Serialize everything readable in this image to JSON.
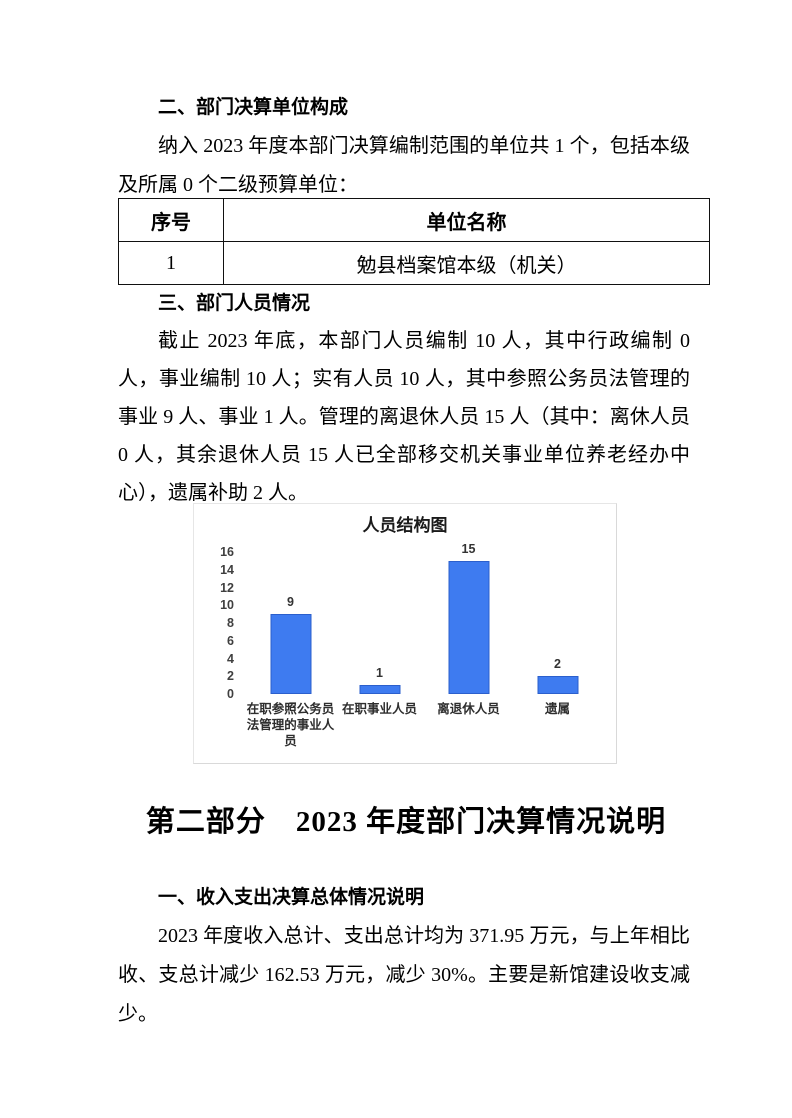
{
  "document": {
    "section2_heading": "二、部门决算单位构成",
    "para_units": "纳入 2023 年度本部门决算编制范围的单位共 1 个，包括本级及所属 0 个二级预算单位：",
    "units_table": {
      "col_index_header": "序号",
      "col_name_header": "单位名称",
      "rows": [
        {
          "index": "1",
          "name": "勉县档案馆本级（机关）"
        }
      ]
    },
    "section3_heading": "三、部门人员情况",
    "para_personnel": "截止 2023 年底，本部门人员编制 10 人，其中行政编制 0 人，事业编制 10 人；实有人员 10 人，其中参照公务员法管理的事业 9 人、事业 1 人。管理的离退休人员 15 人（其中：离休人员 0 人，其余退休人员 15 人已全部移交机关事业单位养老经办中心），遗属补助 2 人。",
    "part2_heading": "第二部分　2023 年度部门决算情况说明",
    "section1_heading": "一、收入支出决算总体情况说明",
    "para_totals": "2023 年度收入总计、支出总计均为 371.95 万元，与上年相比收、支总计减少 162.53 万元，减少 30%。主要是新馆建设收支减少。"
  },
  "chart_data": {
    "type": "bar",
    "title": "人员结构图",
    "categories": [
      "在职参照公务员法管理的事业人员",
      "在职事业人员",
      "离退休人员",
      "遗属"
    ],
    "values": [
      9,
      1,
      15,
      2
    ],
    "xlabel": "",
    "ylabel": "",
    "ylim": [
      0,
      16
    ],
    "ytick_step": 2,
    "yticks": [
      0,
      2,
      4,
      6,
      8,
      10,
      12,
      14,
      16
    ],
    "grid": false,
    "legend": false,
    "data_labels": true,
    "bar_color": "#3e7bf0",
    "bar_border_color": "#2b5fcc",
    "label_color": "#333333"
  }
}
